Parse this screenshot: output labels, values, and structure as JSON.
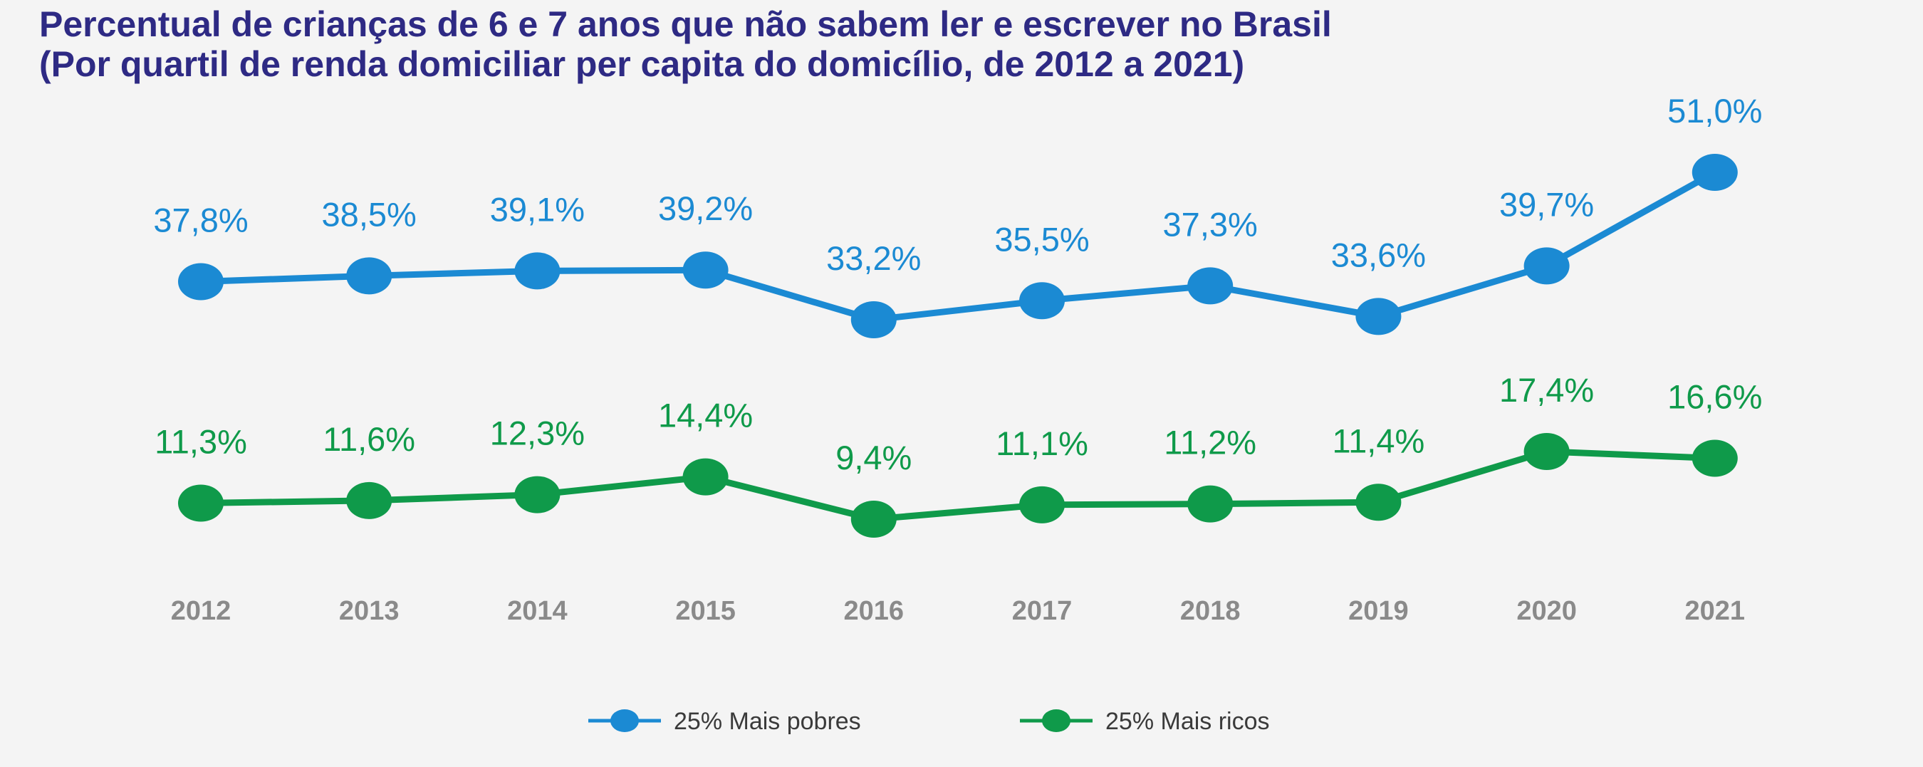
{
  "chart_data": {
    "type": "line",
    "title": "Percentual de crianças de 6 e 7 anos que não sabem ler e escrever no Brasil",
    "subtitle": "(Por quartil de renda domiciliar per capita do domicílio, de 2012 a 2021)",
    "x": [
      "2012",
      "2013",
      "2014",
      "2015",
      "2016",
      "2017",
      "2018",
      "2019",
      "2020",
      "2021"
    ],
    "series": [
      {
        "name": "25% Mais pobres",
        "color": "#1b8ad3",
        "values": [
          37.8,
          38.5,
          39.1,
          39.2,
          33.2,
          35.5,
          37.3,
          33.6,
          39.7,
          51.0
        ],
        "labels": [
          "37,8%",
          "38,5%",
          "39,1%",
          "39,2%",
          "33,2%",
          "35,5%",
          "37,3%",
          "33,6%",
          "39,7%",
          "51,0%"
        ]
      },
      {
        "name": "25% Mais ricos",
        "color": "#0f9a4a",
        "values": [
          11.3,
          11.6,
          12.3,
          14.4,
          9.4,
          11.1,
          11.2,
          11.4,
          17.4,
          16.6
        ],
        "labels": [
          "11,3%",
          "11,6%",
          "12,3%",
          "14,4%",
          "9,4%",
          "11,1%",
          "11,2%",
          "11,4%",
          "17,4%",
          "16,6%"
        ]
      }
    ],
    "legend_position": "bottom-center",
    "grid": false,
    "y_axis_visible": false
  }
}
